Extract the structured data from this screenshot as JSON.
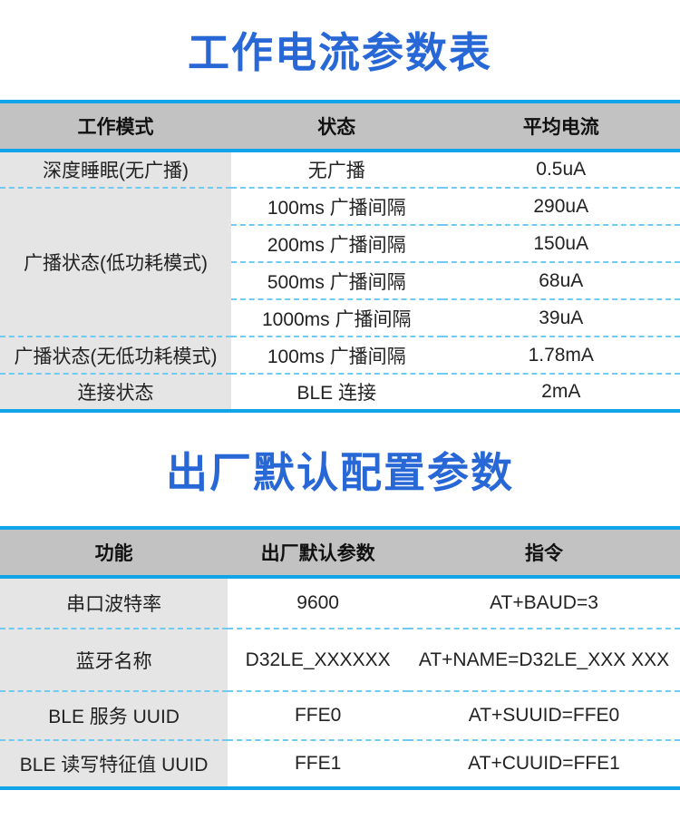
{
  "theme": {
    "title_color": "#2767d6",
    "accent_solid_line": "#12a4e8",
    "accent_dashed_line": "#6fcbf2",
    "header_bg": "#c2c2c2",
    "row_label_bg": "#e5e5e5",
    "text_color": "#222222",
    "background": "#ffffff"
  },
  "current_table": {
    "title": "工作电流参数表",
    "headers": [
      "工作模式",
      "状态",
      "平均电流"
    ],
    "rows": [
      [
        "深度睡眠(无广播)",
        "无广播",
        "0.5uA"
      ],
      [
        "广播状态(低功耗模式)",
        "100ms 广播间隔",
        "290uA"
      ],
      [
        "200ms 广播间隔",
        "150uA"
      ],
      [
        "500ms 广播间隔",
        "68uA"
      ],
      [
        "1000ms 广播间隔",
        "39uA"
      ],
      [
        "广播状态(无低功耗模式)",
        "100ms 广播间隔",
        "1.78mA"
      ],
      [
        "连接状态",
        "BLE 连接",
        "2mA"
      ]
    ]
  },
  "default_config_table": {
    "title": "出厂默认配置参数",
    "headers": [
      "功能",
      "出厂默认参数",
      "指令"
    ],
    "rows": [
      [
        "串口波特率",
        "9600",
        "AT+BAUD=3"
      ],
      [
        "蓝牙名称",
        "D32LE_XXXXXX",
        "AT+NAME=D32LE_XXX XXX"
      ],
      [
        "BLE 服务 UUID",
        "FFE0",
        "AT+SUUID=FFE0"
      ],
      [
        "BLE 读写特征值 UUID",
        "FFE1",
        "AT+CUUID=FFE1"
      ]
    ]
  }
}
